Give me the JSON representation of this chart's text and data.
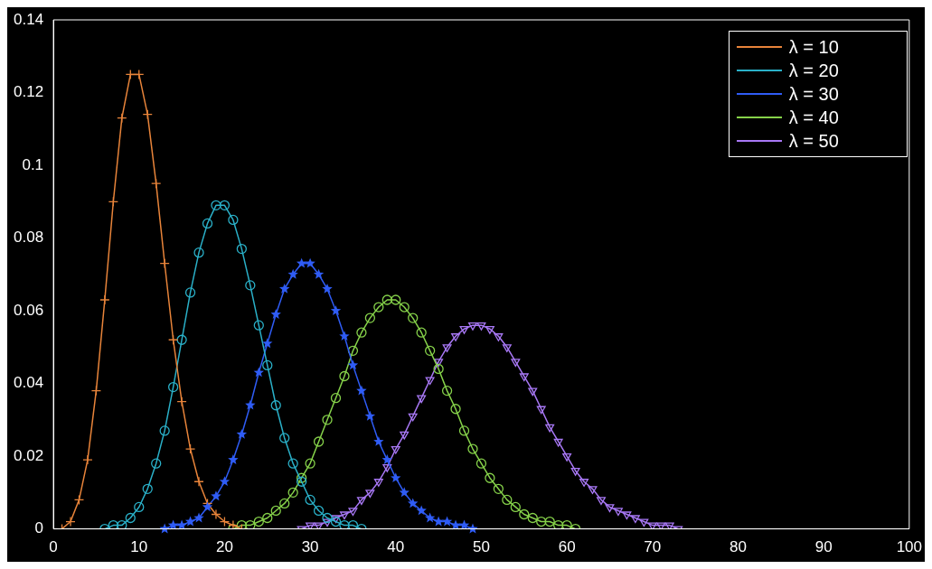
{
  "chart_data": {
    "type": "line",
    "series": [
      {
        "name": "λ = 10",
        "color": "#e8843a",
        "marker": "cross",
        "x": [
          1,
          2,
          3,
          4,
          5,
          6,
          7,
          8,
          9,
          10,
          11,
          12,
          13,
          14,
          15,
          16,
          17,
          18,
          19,
          20,
          21,
          22
        ],
        "values": [
          0,
          0.002,
          0.008,
          0.019,
          0.038,
          0.063,
          0.09,
          0.113,
          0.125,
          0.125,
          0.114,
          0.095,
          0.073,
          0.052,
          0.035,
          0.022,
          0.013,
          0.007,
          0.004,
          0.002,
          0.001,
          0
        ]
      },
      {
        "name": "λ = 20",
        "color": "#2ab0c8",
        "marker": "circle",
        "x": [
          6,
          7,
          8,
          9,
          10,
          11,
          12,
          13,
          14,
          15,
          16,
          17,
          18,
          19,
          20,
          21,
          22,
          23,
          24,
          25,
          26,
          27,
          28,
          29,
          30,
          31,
          32,
          33,
          34,
          35,
          36
        ],
        "values": [
          0,
          0.001,
          0.001,
          0.003,
          0.006,
          0.011,
          0.018,
          0.027,
          0.039,
          0.052,
          0.065,
          0.076,
          0.084,
          0.089,
          0.089,
          0.085,
          0.077,
          0.067,
          0.056,
          0.045,
          0.034,
          0.025,
          0.018,
          0.013,
          0.008,
          0.005,
          0.003,
          0.002,
          0.001,
          0.001,
          0
        ]
      },
      {
        "name": "λ = 30",
        "color": "#2f5cf5",
        "marker": "star",
        "x": [
          13,
          14,
          15,
          16,
          17,
          18,
          19,
          20,
          21,
          22,
          23,
          24,
          25,
          26,
          27,
          28,
          29,
          30,
          31,
          32,
          33,
          34,
          35,
          36,
          37,
          38,
          39,
          40,
          41,
          42,
          43,
          44,
          45,
          46,
          47,
          48,
          49
        ],
        "values": [
          0,
          0.001,
          0.001,
          0.002,
          0.003,
          0.006,
          0.009,
          0.013,
          0.019,
          0.026,
          0.034,
          0.043,
          0.051,
          0.059,
          0.066,
          0.07,
          0.073,
          0.073,
          0.07,
          0.066,
          0.06,
          0.053,
          0.045,
          0.038,
          0.031,
          0.024,
          0.019,
          0.014,
          0.01,
          0.007,
          0.005,
          0.003,
          0.002,
          0.002,
          0.001,
          0.001,
          0
        ]
      },
      {
        "name": "λ = 40",
        "color": "#86d24a",
        "marker": "circle",
        "x": [
          21,
          22,
          23,
          24,
          25,
          26,
          27,
          28,
          29,
          30,
          31,
          32,
          33,
          34,
          35,
          36,
          37,
          38,
          39,
          40,
          41,
          42,
          43,
          44,
          45,
          46,
          47,
          48,
          49,
          50,
          51,
          52,
          53,
          54,
          55,
          56,
          57,
          58,
          59,
          60,
          61
        ],
        "values": [
          0,
          0.001,
          0.001,
          0.002,
          0.003,
          0.005,
          0.007,
          0.01,
          0.014,
          0.018,
          0.024,
          0.03,
          0.036,
          0.042,
          0.049,
          0.054,
          0.058,
          0.061,
          0.063,
          0.063,
          0.061,
          0.058,
          0.054,
          0.049,
          0.044,
          0.038,
          0.033,
          0.027,
          0.022,
          0.018,
          0.014,
          0.011,
          0.008,
          0.006,
          0.004,
          0.003,
          0.002,
          0.002,
          0.001,
          0.001,
          0
        ]
      },
      {
        "name": "λ = 50",
        "color": "#a878f5",
        "marker": "triangle",
        "x": [
          29,
          30,
          31,
          32,
          33,
          34,
          35,
          36,
          37,
          38,
          39,
          40,
          41,
          42,
          43,
          44,
          45,
          46,
          47,
          48,
          49,
          50,
          51,
          52,
          53,
          54,
          55,
          56,
          57,
          58,
          59,
          60,
          61,
          62,
          63,
          64,
          65,
          66,
          67,
          68,
          69,
          70,
          71,
          72,
          73
        ],
        "values": [
          0,
          0.001,
          0.001,
          0.002,
          0.003,
          0.004,
          0.005,
          0.008,
          0.01,
          0.013,
          0.017,
          0.022,
          0.026,
          0.031,
          0.036,
          0.041,
          0.046,
          0.05,
          0.053,
          0.055,
          0.056,
          0.056,
          0.055,
          0.053,
          0.05,
          0.046,
          0.042,
          0.038,
          0.033,
          0.028,
          0.024,
          0.02,
          0.016,
          0.013,
          0.011,
          0.008,
          0.006,
          0.005,
          0.004,
          0.003,
          0.002,
          0.001,
          0.001,
          0.001,
          0
        ]
      }
    ],
    "xlim": [
      0,
      100
    ],
    "xticks": [
      0,
      10,
      20,
      30,
      40,
      50,
      60,
      70,
      80,
      90,
      100
    ],
    "ylim": [
      0,
      0.14
    ],
    "yticks": [
      0,
      0.02,
      0.04,
      0.06,
      0.08,
      0.1,
      0.12,
      0.14
    ],
    "grid": false,
    "legend": "top right",
    "line_style": "solid"
  }
}
